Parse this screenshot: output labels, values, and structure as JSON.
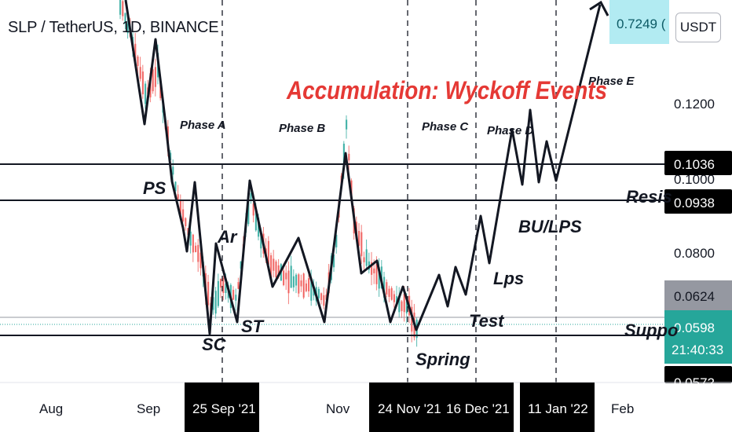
{
  "header": {
    "symbol": "SLP / TetherUS, 1D, BINANCE",
    "unit_button": "USDT"
  },
  "chart_data": {
    "type": "line",
    "title": "Accumulation: Wyckoff Events",
    "y_axis_labels": [
      "0.1200",
      "0.1000",
      "0.0800"
    ],
    "y_axis_tags": [
      {
        "label": "0.1036",
        "kind": "level"
      },
      {
        "label": "0.0938",
        "kind": "level"
      },
      {
        "label": "0.0624",
        "kind": "marker"
      },
      {
        "label": "0.0598",
        "kind": "price",
        "countdown": "21:40:33"
      },
      {
        "label": "0.0572",
        "kind": "level"
      },
      {
        "label": "0.7249 (",
        "kind": "target"
      }
    ],
    "x_axis_labels": [
      "Aug",
      "Sep",
      "Nov",
      "Feb"
    ],
    "x_axis_date_tags": [
      "25 Sep '21",
      "24 Nov '21",
      "16 Dec '21",
      "11 Jan '22"
    ],
    "horizontal_levels": [
      {
        "label": "Resis",
        "value": 0.1036
      },
      {
        "label": "",
        "value": 0.0938
      },
      {
        "label": "Suppo",
        "value": 0.0572
      }
    ],
    "phases": [
      "Phase A",
      "Phase B",
      "Phase C",
      "Phase D",
      "Phase E"
    ],
    "events": [
      "PS",
      "SC",
      "Ar",
      "ST",
      "Spring",
      "Test",
      "Lps",
      "BU/LPS"
    ],
    "colors": {
      "up": "#26a69a",
      "down": "#ef5350",
      "title": "#e53935",
      "price_tag": "#26a69a",
      "target": "#b2ebf2"
    }
  }
}
